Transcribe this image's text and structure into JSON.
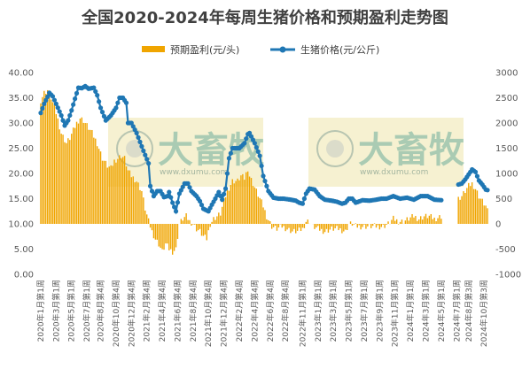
{
  "chart_data": {
    "type": "bar+line",
    "title": "全国2020-2024年每周生猪价格和预期盈利走势图",
    "legend": {
      "position": "top",
      "items": [
        {
          "label": "预期盈利(元/头)",
          "kind": "bar",
          "color": "#f0a500"
        },
        {
          "label": "生猪价格(元/公斤)",
          "kind": "line",
          "color": "#1f77b4"
        }
      ]
    },
    "y_left": {
      "min": 0,
      "max": 40,
      "step": 5,
      "ticks": [
        "0.00",
        "5.00",
        "10.00",
        "15.00",
        "20.00",
        "25.00",
        "30.00",
        "35.00",
        "40.00"
      ],
      "series": "生猪价格(元/公斤)"
    },
    "y_right": {
      "min": -1000,
      "max": 3000,
      "step": 500,
      "ticks": [
        "-1000",
        "-500",
        "0",
        "500",
        "1000",
        "1500",
        "2000",
        "2500",
        "3000"
      ],
      "series": "预期盈利(元/头)"
    },
    "x_labels": [
      "2020年1月第1周",
      "2020年3月第1周",
      "2020年5月第1周",
      "2020年7月第1周",
      "2020年8月第4周",
      "2020年10月第4周",
      "2020年12月第4周",
      "2021年2月第4周",
      "2021年4月第4周",
      "2021年6月第4周",
      "2021年8月第4周",
      "2021年10月第4周",
      "2021年12月第4周",
      "2022年2月第4周",
      "2022年4月第4周",
      "2022年6月第4周",
      "2022年8月第4周",
      "2022年11月第1周",
      "2023年1月第1周",
      "2023年3月第1周",
      "2023年5月第1周",
      "2023年7月第1周",
      "2023年9月第1周",
      "2023年11月第1周",
      "2024年1月第1周",
      "2024年3月第1周",
      "2024年5月第1周",
      "2024年7月第1周",
      "2024年8月第3周",
      "2024年10月第3周"
    ],
    "x_label_weeks": [
      0,
      9,
      18,
      27,
      35,
      44,
      53,
      62,
      71,
      80,
      89,
      98,
      107,
      116,
      125,
      134,
      143,
      153,
      162,
      171,
      180,
      189,
      198,
      207,
      216,
      225,
      234,
      243,
      250,
      259
    ],
    "weeks_total": 262,
    "gap_weeks": [
      235,
      236,
      237,
      238,
      239,
      240,
      241,
      242,
      243
    ],
    "price_anchors": [
      [
        0,
        32.0
      ],
      [
        2,
        33.8
      ],
      [
        4,
        35.2
      ],
      [
        5,
        36.0
      ],
      [
        7,
        35.3
      ],
      [
        9,
        33.8
      ],
      [
        12,
        31.5
      ],
      [
        14,
        29.5
      ],
      [
        16,
        30.5
      ],
      [
        18,
        32.5
      ],
      [
        20,
        34.8
      ],
      [
        22,
        37.0
      ],
      [
        24,
        36.9
      ],
      [
        26,
        37.3
      ],
      [
        28,
        36.8
      ],
      [
        31,
        37.0
      ],
      [
        33,
        35.5
      ],
      [
        35,
        33.0
      ],
      [
        38,
        30.5
      ],
      [
        41,
        31.5
      ],
      [
        44,
        33.0
      ],
      [
        46,
        35.0
      ],
      [
        48,
        35.0
      ],
      [
        50,
        34.0
      ],
      [
        51,
        30.0
      ],
      [
        53,
        30.0
      ],
      [
        56,
        28.0
      ],
      [
        60,
        24.5
      ],
      [
        63,
        22.0
      ],
      [
        64,
        17.5
      ],
      [
        66,
        15.5
      ],
      [
        68,
        16.5
      ],
      [
        70,
        16.5
      ],
      [
        72,
        15.3
      ],
      [
        74,
        15.5
      ],
      [
        75,
        16.3
      ],
      [
        77,
        14.2
      ],
      [
        79,
        12.5
      ],
      [
        81,
        16.0
      ],
      [
        84,
        18.0
      ],
      [
        86,
        18.0
      ],
      [
        88,
        16.5
      ],
      [
        91,
        15.5
      ],
      [
        93,
        14.5
      ],
      [
        95,
        13.0
      ],
      [
        98,
        12.5
      ],
      [
        100,
        13.8
      ],
      [
        102,
        15.0
      ],
      [
        104,
        16.3
      ],
      [
        106,
        14.8
      ],
      [
        108,
        17.0
      ],
      [
        110,
        23.0
      ],
      [
        112,
        25.0
      ],
      [
        116,
        25.0
      ],
      [
        119,
        26.0
      ],
      [
        121,
        27.8
      ],
      [
        122,
        28.0
      ],
      [
        125,
        26.0
      ],
      [
        128,
        23.5
      ],
      [
        130,
        19.5
      ],
      [
        133,
        16.5
      ],
      [
        136,
        15.2
      ],
      [
        139,
        15.0
      ],
      [
        142,
        15.0
      ],
      [
        146,
        14.8
      ],
      [
        149,
        14.6
      ],
      [
        151,
        14.2
      ],
      [
        153,
        14.0
      ],
      [
        155,
        16.0
      ],
      [
        157,
        17.0
      ],
      [
        160,
        16.8
      ],
      [
        163,
        15.5
      ],
      [
        166,
        14.8
      ],
      [
        170,
        14.6
      ],
      [
        173,
        14.4
      ],
      [
        176,
        14.0
      ],
      [
        178,
        14.2
      ],
      [
        180,
        15.0
      ],
      [
        182,
        15.0
      ],
      [
        184,
        14.2
      ],
      [
        188,
        14.7
      ],
      [
        192,
        14.6
      ],
      [
        196,
        14.8
      ],
      [
        199,
        15.0
      ],
      [
        202,
        15.0
      ],
      [
        206,
        15.5
      ],
      [
        210,
        15.0
      ],
      [
        214,
        15.2
      ],
      [
        218,
        14.8
      ],
      [
        222,
        15.5
      ],
      [
        226,
        15.5
      ],
      [
        230,
        14.8
      ],
      [
        234,
        14.7
      ],
      [
        244,
        17.8
      ],
      [
        246,
        18.0
      ],
      [
        248,
        18.8
      ],
      [
        250,
        19.8
      ],
      [
        252,
        20.8
      ],
      [
        254,
        20.3
      ],
      [
        256,
        18.6
      ],
      [
        258,
        17.8
      ],
      [
        260,
        16.8
      ],
      [
        261,
        16.7
      ]
    ],
    "profit_anchors": [
      [
        0,
        2450
      ],
      [
        2,
        2600
      ],
      [
        4,
        2650
      ],
      [
        6,
        2500
      ],
      [
        9,
        2200
      ],
      [
        12,
        1800
      ],
      [
        15,
        1600
      ],
      [
        17,
        1700
      ],
      [
        19,
        1850
      ],
      [
        21,
        2000
      ],
      [
        23,
        2100
      ],
      [
        25,
        2050
      ],
      [
        27,
        1950
      ],
      [
        30,
        1800
      ],
      [
        33,
        1600
      ],
      [
        36,
        1300
      ],
      [
        39,
        1150
      ],
      [
        41,
        1100
      ],
      [
        43,
        1250
      ],
      [
        45,
        1300
      ],
      [
        47,
        1350
      ],
      [
        49,
        1300
      ],
      [
        51,
        1050
      ],
      [
        53,
        950
      ],
      [
        56,
        850
      ],
      [
        59,
        650
      ],
      [
        61,
        300
      ],
      [
        63,
        50
      ],
      [
        65,
        -150
      ],
      [
        67,
        -300
      ],
      [
        69,
        -400
      ],
      [
        71,
        -550
      ],
      [
        73,
        -400
      ],
      [
        75,
        -500
      ],
      [
        77,
        -550
      ],
      [
        79,
        -500
      ],
      [
        81,
        0
      ],
      [
        83,
        100
      ],
      [
        85,
        150
      ],
      [
        87,
        50
      ],
      [
        89,
        0
      ],
      [
        91,
        -100
      ],
      [
        93,
        -150
      ],
      [
        95,
        -250
      ],
      [
        97,
        -300
      ],
      [
        99,
        0
      ],
      [
        101,
        100
      ],
      [
        103,
        150
      ],
      [
        105,
        200
      ],
      [
        107,
        450
      ],
      [
        109,
        650
      ],
      [
        112,
        850
      ],
      [
        115,
        850
      ],
      [
        117,
        950
      ],
      [
        119,
        900
      ],
      [
        121,
        1100
      ],
      [
        122,
        950
      ],
      [
        124,
        800
      ],
      [
        126,
        650
      ],
      [
        128,
        500
      ],
      [
        130,
        350
      ],
      [
        132,
        150
      ],
      [
        135,
        -50
      ],
      [
        138,
        -100
      ],
      [
        141,
        -50
      ],
      [
        144,
        -100
      ],
      [
        147,
        -150
      ],
      [
        150,
        -150
      ],
      [
        153,
        -100
      ],
      [
        155,
        50
      ],
      [
        157,
        50
      ],
      [
        159,
        -50
      ],
      [
        162,
        -100
      ],
      [
        166,
        -150
      ],
      [
        170,
        -100
      ],
      [
        174,
        -100
      ],
      [
        178,
        -150
      ],
      [
        180,
        0
      ],
      [
        182,
        0
      ],
      [
        184,
        -50
      ],
      [
        188,
        -50
      ],
      [
        192,
        -50
      ],
      [
        196,
        -50
      ],
      [
        200,
        -50
      ],
      [
        203,
        0
      ],
      [
        206,
        100
      ],
      [
        209,
        50
      ],
      [
        212,
        50
      ],
      [
        215,
        100
      ],
      [
        218,
        150
      ],
      [
        221,
        100
      ],
      [
        224,
        150
      ],
      [
        227,
        150
      ],
      [
        230,
        100
      ],
      [
        234,
        150
      ],
      [
        244,
        500
      ],
      [
        246,
        550
      ],
      [
        248,
        650
      ],
      [
        250,
        750
      ],
      [
        252,
        800
      ],
      [
        254,
        700
      ],
      [
        256,
        550
      ],
      [
        258,
        450
      ],
      [
        260,
        350
      ],
      [
        261,
        250
      ]
    ]
  },
  "watermark": {
    "text": "大畜牧",
    "url": "www.dxumu.com"
  }
}
